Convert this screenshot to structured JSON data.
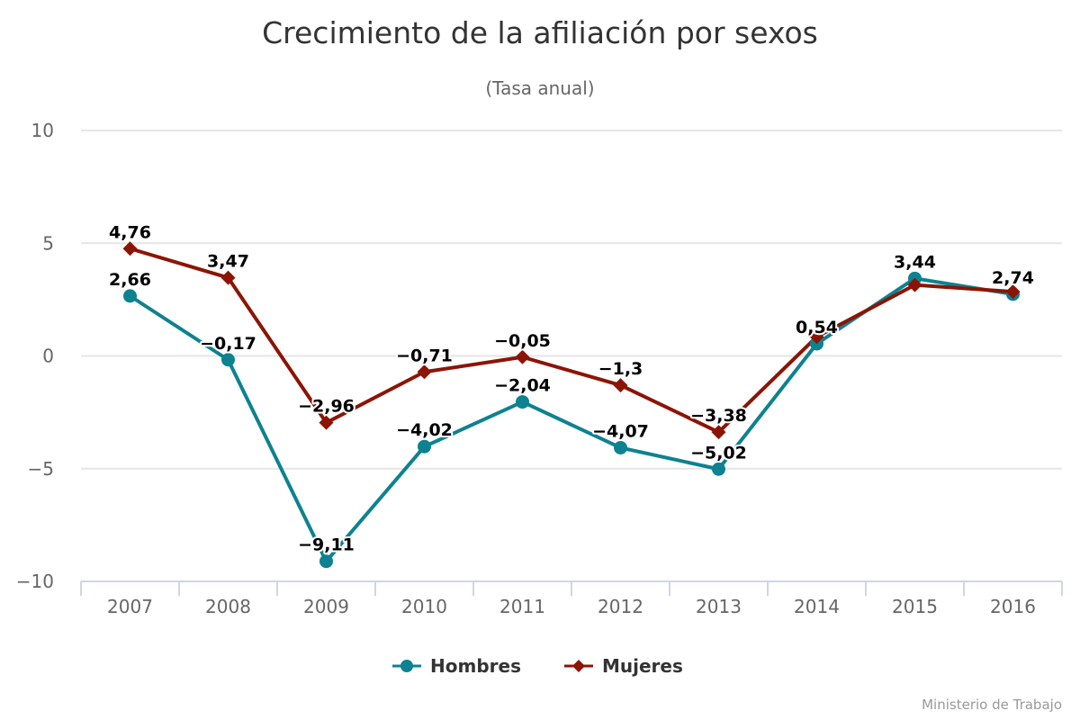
{
  "chart_data": {
    "type": "line",
    "title": "Crecimiento de la afiliación por sexos",
    "subtitle": "(Tasa anual)",
    "xlabel": "",
    "ylabel": "",
    "ylim": [
      -10,
      10
    ],
    "yticks": [
      10,
      5,
      0,
      -5,
      -10
    ],
    "ytick_labels": [
      "10",
      "5",
      "0",
      "−5",
      "−10"
    ],
    "categories": [
      "2007",
      "2008",
      "2009",
      "2010",
      "2011",
      "2012",
      "2013",
      "2014",
      "2015",
      "2016"
    ],
    "grid": true,
    "legend_position": "bottom-center",
    "series": [
      {
        "name": "Hombres",
        "color": "#0d8290",
        "marker": "circle",
        "values": [
          2.66,
          -0.17,
          -9.11,
          -4.02,
          -2.04,
          -4.07,
          -5.02,
          0.54,
          3.44,
          2.74
        ],
        "labels": [
          "2,66",
          "−0,17",
          "−9,11",
          "−4,02",
          "−2,04",
          "−4,07",
          "−5,02",
          "0,54",
          "3,44",
          "2,74"
        ]
      },
      {
        "name": "Mujeres",
        "color": "#8c1405",
        "marker": "diamond",
        "values": [
          4.76,
          3.47,
          -2.96,
          -0.71,
          -0.05,
          -1.3,
          -3.38,
          0.85,
          3.15,
          2.85
        ],
        "labels": [
          "4,76",
          "3,47",
          "−2,96",
          "−0,71",
          "−0,05",
          "−1,3",
          "−3,38",
          null,
          null,
          null
        ]
      }
    ],
    "credit": "Ministerio de Trabajo"
  }
}
